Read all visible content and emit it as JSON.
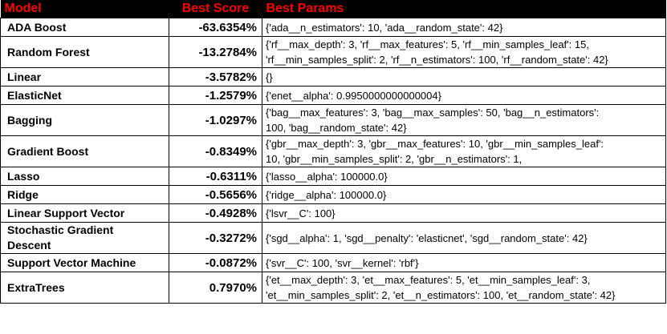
{
  "headers": {
    "model": "Model",
    "score": "Best Score",
    "params": "Best Params"
  },
  "rows": [
    {
      "model": "ADA Boost",
      "score": "-63.6354%",
      "params": [
        "{'ada__n_estimators': 10, 'ada__random_state': 42}"
      ]
    },
    {
      "model": "Random Forest",
      "score": "-13.2784%",
      "params": [
        "{'rf__max_depth': 3, 'rf__max_features': 5, 'rf__min_samples_leaf': 15,",
        "'rf__min_samples_split': 2, 'rf__n_estimators': 100, 'rf__random_state': 42}"
      ]
    },
    {
      "model": "Linear",
      "score": "-3.5782%",
      "params": [
        "{}"
      ]
    },
    {
      "model": "ElasticNet",
      "score": "-1.2579%",
      "params": [
        "{'enet__alpha': 0.9950000000000004}"
      ]
    },
    {
      "model": "Bagging",
      "score": "-1.0297%",
      "params": [
        "{'bag__max_features': 3, 'bag__max_samples': 50, 'bag__n_estimators':",
        "100, 'bag__random_state': 42}"
      ]
    },
    {
      "model": "Gradient Boost",
      "score": "-0.8349%",
      "params": [
        "{'gbr__max_depth': 3, 'gbr__max_features': 10, 'gbr__min_samples_leaf':",
        "10, 'gbr__min_samples_split': 2, 'gbr__n_estimators': 1,"
      ]
    },
    {
      "model": "Lasso",
      "score": "-0.6311%",
      "params": [
        "{'lasso__alpha': 100000.0}"
      ]
    },
    {
      "model": "Ridge",
      "score": "-0.5656%",
      "params": [
        "{'ridge__alpha': 100000.0}"
      ]
    },
    {
      "model": "Linear Support Vector",
      "score": "-0.4928%",
      "params": [
        "{'lsvr__C': 100}"
      ]
    },
    {
      "model": "Stochastic Gradient Descent",
      "score": "-0.3272%",
      "params": [
        "{'sgd__alpha': 1, 'sgd__penalty': 'elasticnet', 'sgd__random_state': 42}"
      ]
    },
    {
      "model": "Support Vector Machine",
      "score": "-0.0872%",
      "params": [
        "{'svr__C': 100, 'svr__kernel': 'rbf'}"
      ]
    },
    {
      "model": "ExtraTrees",
      "score": "0.7970%",
      "params": [
        "{'et__max_depth': 3, 'et__max_features': 5, 'et__min_samples_leaf': 3,",
        "'et__min_samples_split': 2, 'et__n_estimators': 100, 'et__random_state': 42}"
      ]
    }
  ]
}
